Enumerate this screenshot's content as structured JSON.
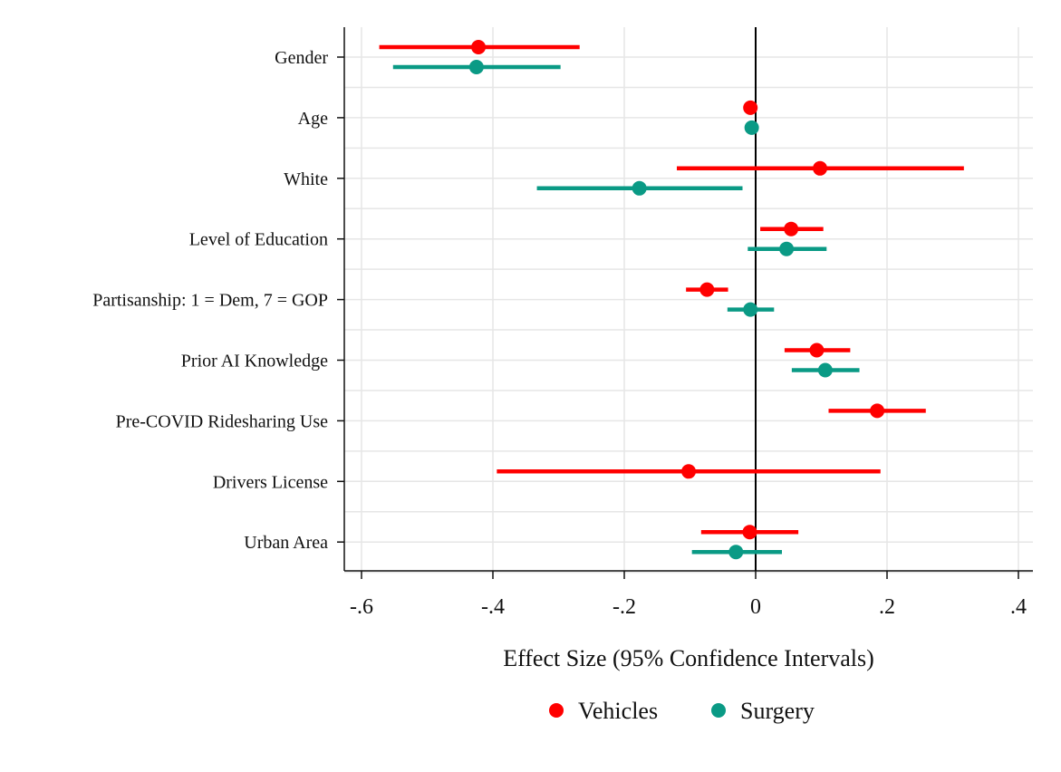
{
  "chart_data": {
    "type": "coefficient-plot",
    "xlabel": "Effect Size (95% Confidence Intervals)",
    "xlim": [
      -0.63,
      0.42
    ],
    "xticks": [
      -0.6,
      -0.4,
      -0.2,
      0,
      0.2,
      0.4
    ],
    "xtick_labels": [
      "-.6",
      "-.4",
      "-.2",
      "0",
      ".2",
      ".4"
    ],
    "reference_line": 0,
    "colors": {
      "Vehicles": "#ff0000",
      "Surgery": "#0a9a85"
    },
    "categories": [
      "Gender",
      "Age",
      "White",
      "Level of Education",
      "Partisanship: 1 = Dem, 7 = GOP",
      "Prior AI Knowledge",
      "Pre-COVID Ridesharing Use",
      "Drivers License",
      "Urban Area"
    ],
    "series": [
      {
        "name": "Vehicles",
        "values": [
          {
            "category": "Gender",
            "estimate": -0.422,
            "lo": -0.573,
            "hi": -0.268
          },
          {
            "category": "Age",
            "estimate": -0.008,
            "lo": -0.012,
            "hi": -0.004
          },
          {
            "category": "White",
            "estimate": 0.098,
            "lo": -0.12,
            "hi": 0.317
          },
          {
            "category": "Level of Education",
            "estimate": 0.054,
            "lo": 0.007,
            "hi": 0.103
          },
          {
            "category": "Partisanship: 1 = Dem, 7 = GOP",
            "estimate": -0.074,
            "lo": -0.106,
            "hi": -0.042
          },
          {
            "category": "Prior AI Knowledge",
            "estimate": 0.093,
            "lo": 0.044,
            "hi": 0.144
          },
          {
            "category": "Pre-COVID Ridesharing Use",
            "estimate": 0.185,
            "lo": 0.111,
            "hi": 0.259
          },
          {
            "category": "Drivers License",
            "estimate": -0.102,
            "lo": -0.394,
            "hi": 0.19
          },
          {
            "category": "Urban Area",
            "estimate": -0.009,
            "lo": -0.083,
            "hi": 0.065
          }
        ]
      },
      {
        "name": "Surgery",
        "values": [
          {
            "category": "Gender",
            "estimate": -0.425,
            "lo": -0.552,
            "hi": -0.297
          },
          {
            "category": "Age",
            "estimate": -0.006,
            "lo": -0.009,
            "hi": -0.003
          },
          {
            "category": "White",
            "estimate": -0.177,
            "lo": -0.333,
            "hi": -0.02
          },
          {
            "category": "Level of Education",
            "estimate": 0.047,
            "lo": -0.012,
            "hi": 0.108
          },
          {
            "category": "Partisanship: 1 = Dem, 7 = GOP",
            "estimate": -0.008,
            "lo": -0.043,
            "hi": 0.028
          },
          {
            "category": "Prior AI Knowledge",
            "estimate": 0.106,
            "lo": 0.055,
            "hi": 0.158
          },
          {
            "category": "Drivers License",
            "estimate": null,
            "lo": null,
            "hi": null
          },
          {
            "category": "Urban Area",
            "estimate": -0.03,
            "lo": -0.097,
            "hi": 0.04
          }
        ]
      }
    ],
    "legend": {
      "position": "bottom-center",
      "entries": [
        "Vehicles",
        "Surgery"
      ]
    }
  }
}
